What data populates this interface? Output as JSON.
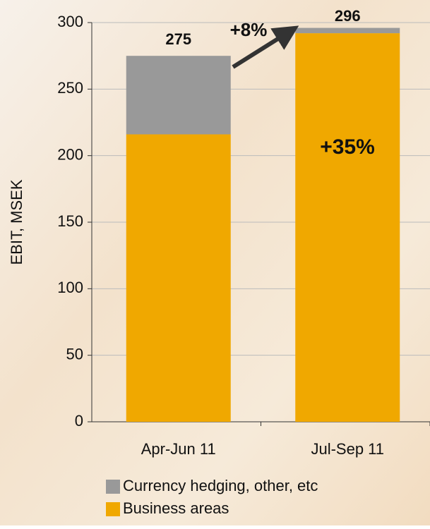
{
  "chart_data": {
    "type": "stacked_bar",
    "y_label": "EBIT, MSEK",
    "categories": [
      "Apr-Jun 11",
      "Jul-Sep 11"
    ],
    "series": [
      {
        "name": "Business areas",
        "color": "#f0a800",
        "values": [
          216,
          292
        ]
      },
      {
        "name": "Currency hedging, other, etc",
        "color": "#999999",
        "values": [
          59,
          4
        ]
      }
    ],
    "totals": [
      275,
      296
    ],
    "annotations": [
      "+8%",
      "+35%"
    ],
    "ylim": [
      0,
      300
    ],
    "yticks": [
      0,
      50,
      100,
      150,
      200,
      250,
      300
    ],
    "grid": true
  }
}
